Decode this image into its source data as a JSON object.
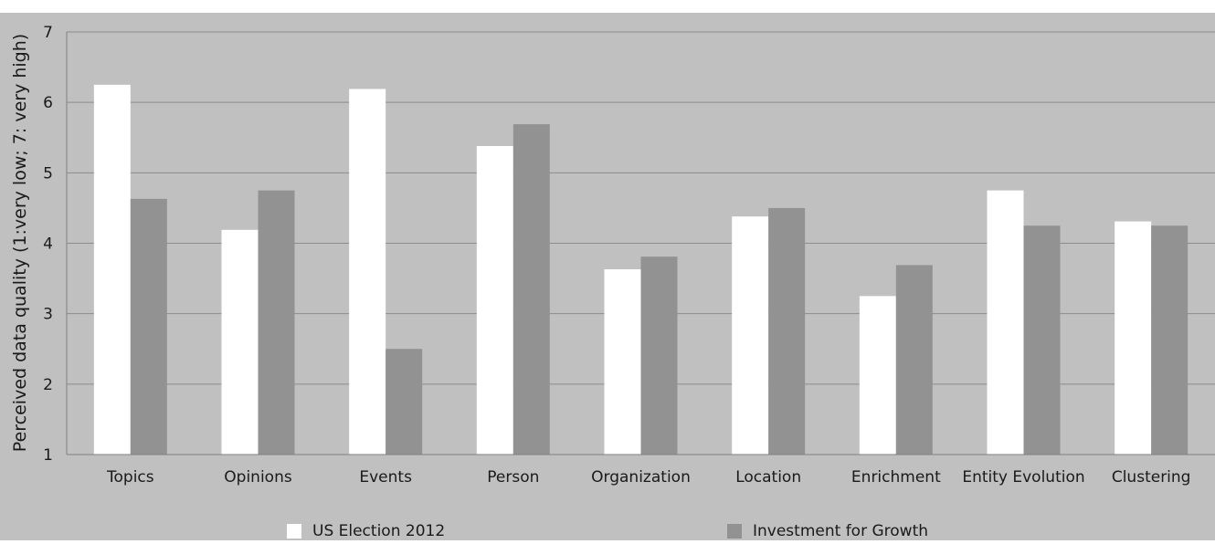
{
  "chart_data": {
    "type": "bar",
    "title": "",
    "xlabel": "",
    "ylabel": "Perceived data quality (1:very low; 7: very high)",
    "ylim": [
      1,
      7
    ],
    "yticks": [
      1,
      2,
      3,
      4,
      5,
      6,
      7
    ],
    "grid": true,
    "legend_position": "bottom",
    "categories": [
      "Topics",
      "Opinions",
      "Events",
      "Person",
      "Organization",
      "Location",
      "Enrichment",
      "Entity Evolution",
      "Clustering"
    ],
    "series": [
      {
        "name": "US Election 2012",
        "color": "#ffffff",
        "values": [
          6.25,
          4.19,
          6.19,
          5.38,
          3.63,
          4.38,
          3.25,
          4.75,
          4.31
        ]
      },
      {
        "name": "Investment for Growth",
        "color": "#929292",
        "values": [
          4.63,
          4.75,
          2.5,
          5.69,
          3.81,
          4.5,
          3.69,
          4.25,
          4.25
        ]
      }
    ],
    "colors": {
      "plot_background": "#c0c0c0",
      "gridline": "#8c8c8c"
    }
  }
}
